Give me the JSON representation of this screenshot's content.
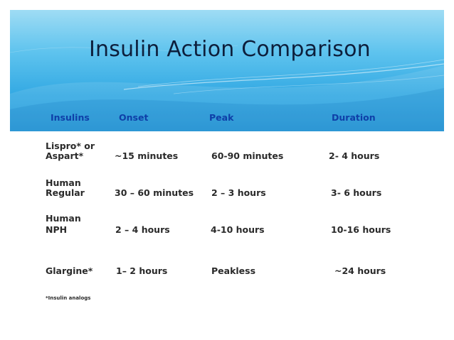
{
  "title": "Insulin Action Comparison",
  "headers": [
    "Insulins",
    "Onset ",
    "Peak",
    "Duration"
  ],
  "rows": [
    {
      "insulin_line1": "Lispro* or",
      "insulin_line2": "Aspart*",
      "onset": "~15 minutes",
      "peak": "60-90 minutes",
      "duration": "2- 4 hours"
    },
    {
      "insulin_line1": "Human",
      "insulin_line2": "Regular",
      "onset": "30 – 60 minutes",
      "peak": "2 – 3 hours",
      "duration": "3- 6 hours"
    },
    {
      "insulin_line1": "Human",
      "insulin_line2": "NPH",
      "onset": "2 – 4 hours",
      "peak": "4-10 hours",
      "duration": "10-16 hours"
    },
    {
      "insulin_line1": "",
      "insulin_line2": "Glargine*",
      "onset": "1– 2 hours",
      "peak": "Peakless",
      "duration": "~24 hours"
    }
  ],
  "footnote": "*Insulin analogs",
  "colors": {
    "banner_top": "#9fdcf4",
    "banner_bottom": "#1f96d8",
    "header_text": "#0e3fa8",
    "title_text": "#0d1f3c"
  }
}
